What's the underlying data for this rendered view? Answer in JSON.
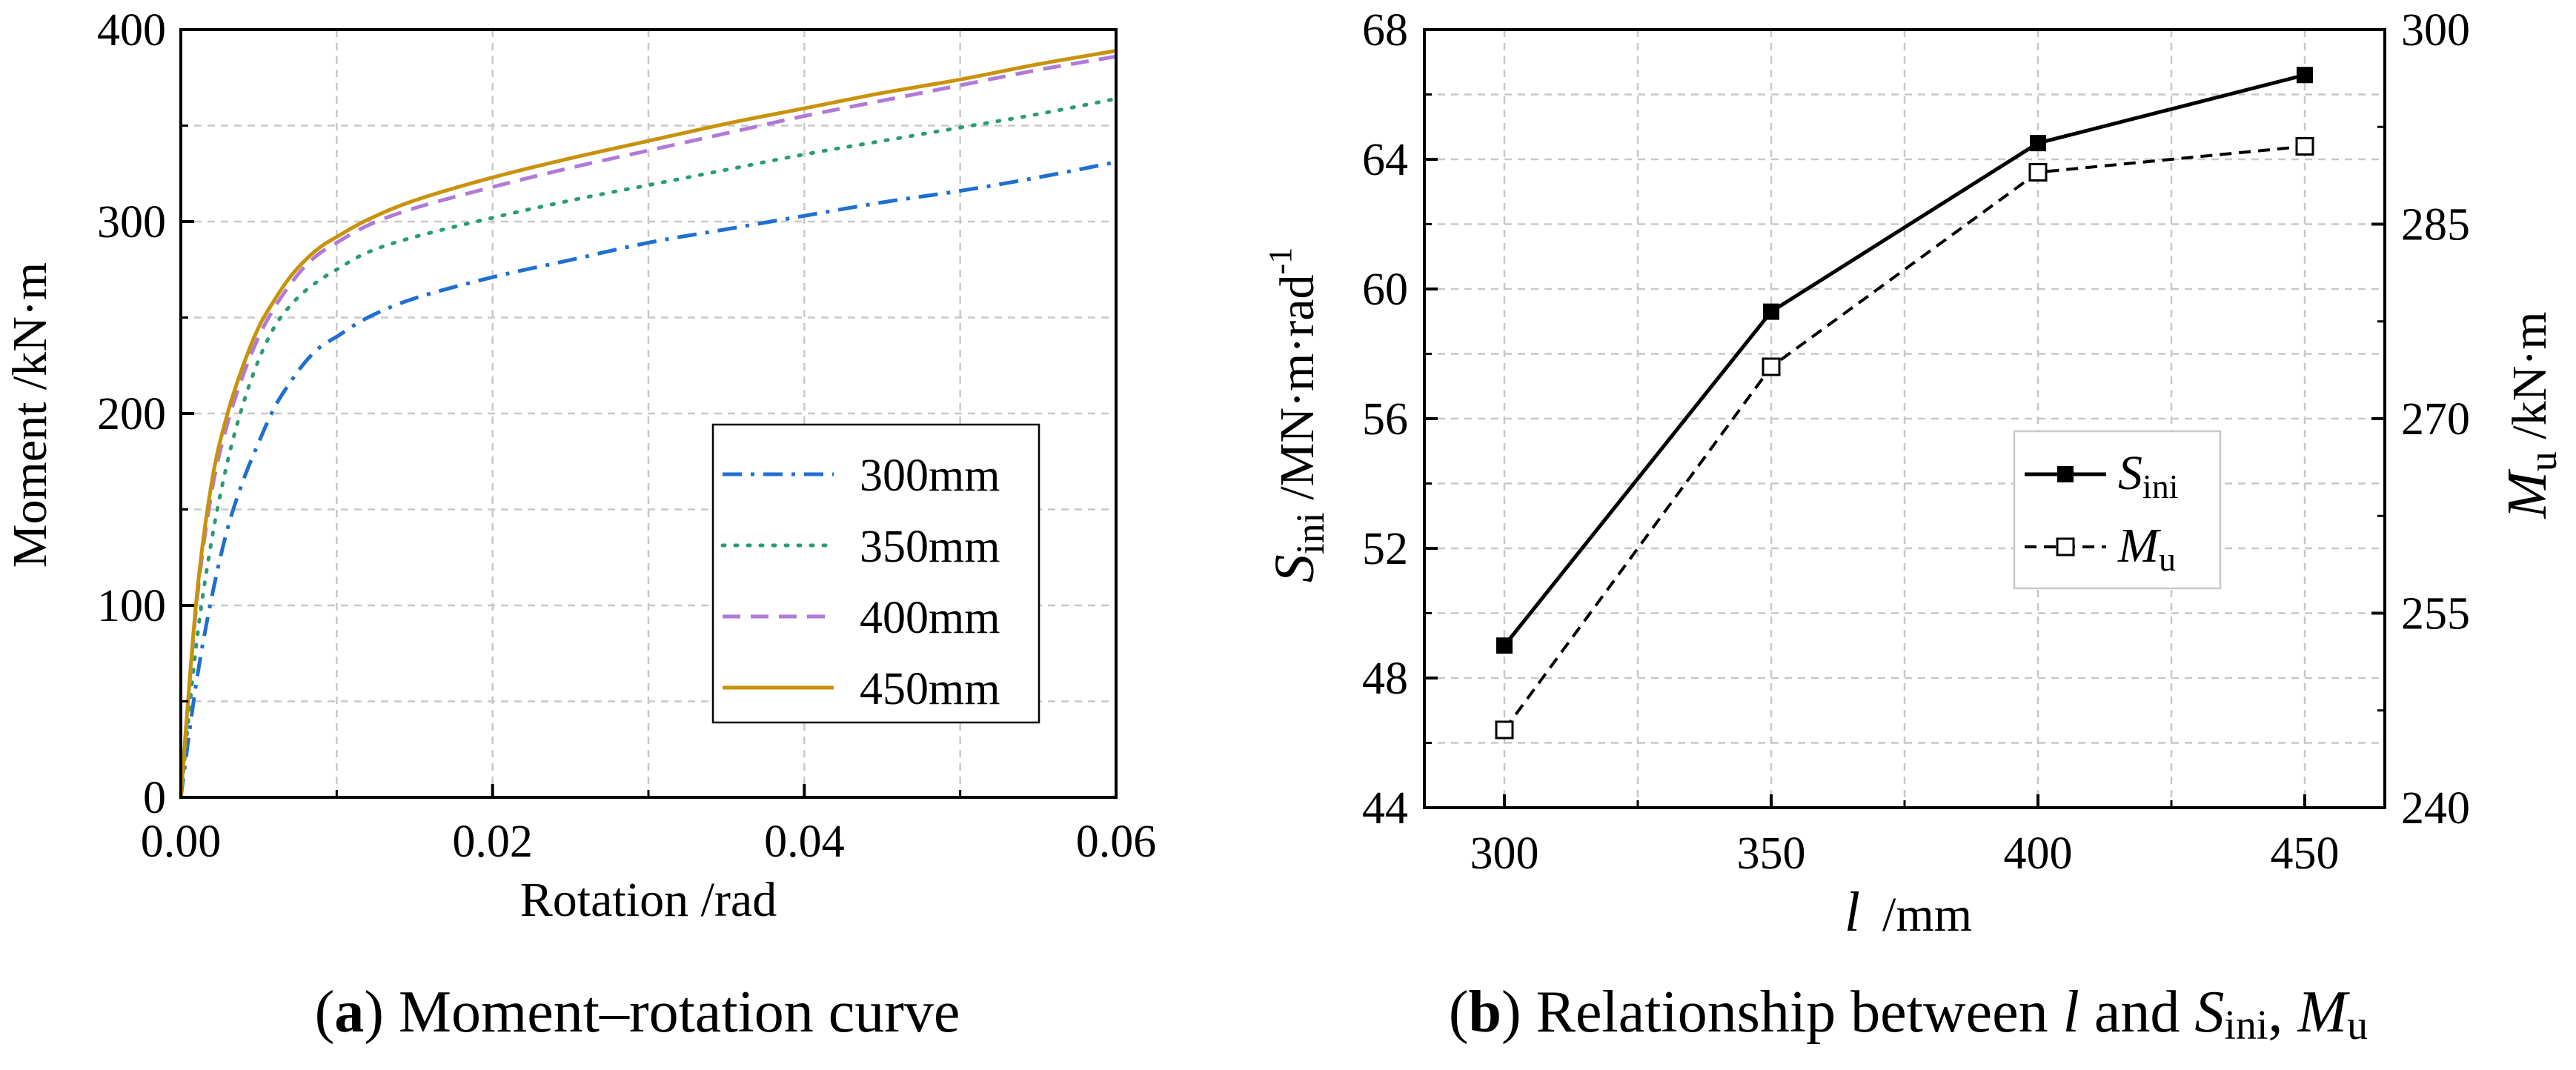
{
  "chart_data": [
    {
      "type": "line",
      "title": "",
      "xlabel": "Rotation /rad",
      "ylabel": "Moment /kN·m",
      "xlim": [
        0,
        0.06
      ],
      "ylim": [
        0,
        400
      ],
      "xticks": [
        "0.00",
        "0.02",
        "0.04",
        "0.06"
      ],
      "yticks": [
        "0",
        "100",
        "200",
        "300",
        "400"
      ],
      "grid": true,
      "legend_position": "center-right",
      "series": [
        {
          "name": "300mm",
          "color": "#1f6fd1",
          "style": "dashdot",
          "x": [
            0,
            0.001,
            0.002,
            0.003,
            0.004,
            0.005,
            0.006,
            0.007,
            0.008,
            0.009,
            0.01,
            0.012,
            0.015,
            0.02,
            0.025,
            0.03,
            0.035,
            0.04,
            0.045,
            0.05,
            0.055,
            0.06
          ],
          "y": [
            0,
            60,
            105,
            140,
            165,
            185,
            203,
            216,
            227,
            235,
            240,
            250,
            260,
            271,
            280,
            289,
            296,
            303,
            310,
            316,
            323,
            331
          ]
        },
        {
          "name": "350mm",
          "color": "#2a9d6f",
          "style": "dotted",
          "x": [
            0,
            0.001,
            0.002,
            0.003,
            0.004,
            0.005,
            0.006,
            0.007,
            0.008,
            0.009,
            0.01,
            0.012,
            0.015,
            0.02,
            0.025,
            0.03,
            0.035,
            0.04,
            0.045,
            0.05,
            0.055,
            0.06
          ],
          "y": [
            0,
            80,
            135,
            175,
            205,
            228,
            245,
            256,
            264,
            270,
            275,
            284,
            292,
            302,
            311,
            319,
            327,
            335,
            342,
            349,
            356,
            364
          ]
        },
        {
          "name": "400mm",
          "color": "#b07ad9",
          "style": "dashed",
          "x": [
            0,
            0.001,
            0.002,
            0.003,
            0.004,
            0.005,
            0.006,
            0.007,
            0.008,
            0.009,
            0.01,
            0.012,
            0.015,
            0.02,
            0.025,
            0.03,
            0.035,
            0.04,
            0.045,
            0.05,
            0.055,
            0.06
          ],
          "y": [
            0,
            100,
            160,
            195,
            220,
            240,
            255,
            267,
            277,
            284,
            289,
            298,
            307,
            318,
            328,
            337,
            346,
            355,
            363,
            371,
            379,
            386
          ]
        },
        {
          "name": "450mm",
          "color": "#c8930a",
          "style": "solid",
          "x": [
            0,
            0.001,
            0.002,
            0.003,
            0.004,
            0.005,
            0.006,
            0.007,
            0.008,
            0.009,
            0.01,
            0.012,
            0.015,
            0.02,
            0.025,
            0.03,
            0.035,
            0.04,
            0.045,
            0.05,
            0.055,
            0.06
          ],
          "y": [
            0,
            103,
            165,
            200,
            225,
            245,
            259,
            271,
            280,
            287,
            292,
            301,
            311,
            323,
            333,
            342,
            351,
            359,
            367,
            374,
            382,
            389
          ]
        }
      ]
    },
    {
      "type": "line",
      "title": "",
      "xlabel_italic": "l",
      "xlabel_rest": "/mm",
      "ylabel_left": {
        "sym": "S",
        "sub": "ini",
        "unit": " /MN·m·rad",
        "sup": "-1"
      },
      "ylabel_right": {
        "sym": "M",
        "sub": "u",
        "unit": " /kN·m"
      },
      "categories": [
        "300",
        "350",
        "400",
        "450"
      ],
      "x": [
        300,
        350,
        400,
        450
      ],
      "xlim": [
        285,
        465
      ],
      "ylim_left": [
        44,
        68
      ],
      "ylim_right": [
        240,
        300
      ],
      "yticks_left": [
        "44",
        "48",
        "52",
        "56",
        "60",
        "64",
        "68"
      ],
      "yticks_right": [
        "240",
        "255",
        "270",
        "285",
        "300"
      ],
      "grid": true,
      "legend_position": "center-right",
      "series": [
        {
          "name_sym": "S",
          "name_sub": "ini",
          "axis": "left",
          "style": "solid",
          "marker": "filled-square",
          "values": [
            49.0,
            59.3,
            64.5,
            66.6
          ]
        },
        {
          "name_sym": "M",
          "name_sub": "u",
          "axis": "right",
          "style": "dashed",
          "marker": "open-square",
          "values": [
            246.0,
            274.0,
            289.0,
            291.0
          ]
        }
      ]
    }
  ],
  "captions": {
    "a": {
      "letter": "a",
      "text": "Moment–rotation curve"
    },
    "b": {
      "letter": "b",
      "pre": "Relationship between ",
      "l": "l",
      "and": " and ",
      "S": "S",
      "S_sub": "ini",
      "comma": ", ",
      "M": "M",
      "M_sub": "u"
    }
  },
  "colors": {
    "axis": "#000000",
    "grid": "#c8c8c8"
  }
}
